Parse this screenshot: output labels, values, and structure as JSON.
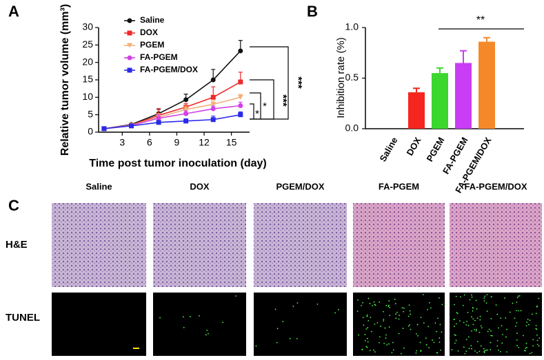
{
  "chart_data": [
    {
      "type": "line",
      "panel": "A",
      "ylabel": "Relative tumor volume (mm³)",
      "xlabel": "Time post tumor inoculation (day)",
      "x": [
        1,
        4,
        7,
        10,
        13,
        16
      ],
      "xlim": [
        0.4,
        17
      ],
      "xticks": [
        3,
        6,
        9,
        12,
        15
      ],
      "ylim": [
        0,
        30
      ],
      "yticks": [
        0,
        5,
        10,
        15,
        20,
        25,
        30
      ],
      "series": [
        {
          "name": "Saline",
          "color": "#111111",
          "marker": "circle",
          "values": [
            1,
            2.2,
            5.3,
            9.3,
            15,
            23.3
          ],
          "errors": [
            0.3,
            0.4,
            1.2,
            1.6,
            3.0,
            3.0
          ]
        },
        {
          "name": "DOX",
          "color": "#ee2b2b",
          "marker": "square",
          "values": [
            1,
            2,
            4.8,
            7.2,
            10,
            14.4
          ],
          "errors": [
            0.3,
            0.4,
            2.0,
            1.0,
            3.0,
            2.8
          ]
        },
        {
          "name": "PGEM",
          "color": "#f3b07a",
          "marker": "triangle",
          "values": [
            1,
            2,
            4.3,
            6.5,
            8,
            10
          ],
          "errors": [
            0.3,
            0.3,
            1.0,
            1.0,
            1.0,
            0.8
          ]
        },
        {
          "name": "FA-PGEM",
          "color": "#d43ee8",
          "marker": "circle",
          "values": [
            1,
            1.9,
            4.0,
            5.3,
            6.7,
            7.6
          ],
          "errors": [
            0.3,
            0.3,
            1.0,
            0.8,
            0.8,
            1.0
          ]
        },
        {
          "name": "FA-PGEM/DOX",
          "color": "#2a2ae8",
          "marker": "square",
          "values": [
            1,
            1.8,
            2.8,
            3.2,
            3.6,
            5.0
          ],
          "errors": [
            0.2,
            0.3,
            0.5,
            0.6,
            1.0,
            0.8
          ]
        }
      ],
      "annotations": [
        "***",
        "***",
        "*",
        "*"
      ]
    },
    {
      "type": "bar",
      "panel": "B",
      "ylabel": "Inhibition rate (%)",
      "categories": [
        "Saline",
        "DOX",
        "PGEM",
        "FA-PGEM",
        "FA-PGEM/DOX"
      ],
      "values": [
        0,
        0.36,
        0.55,
        0.65,
        0.86
      ],
      "errors": [
        0,
        0.04,
        0.05,
        0.12,
        0.04
      ],
      "colors": [
        "#888888",
        "#f5261f",
        "#3bd62e",
        "#c93df5",
        "#f5892a"
      ],
      "ylim": [
        0,
        1
      ],
      "yticks": [
        {
          "value": 0,
          "label": "0.0"
        },
        {
          "value": 0.5,
          "label": "0.5"
        },
        {
          "value": 1,
          "label": "1.0"
        }
      ],
      "annotations": [
        "**"
      ]
    }
  ],
  "panel_c": {
    "panel": "C",
    "columns": [
      "Saline",
      "DOX",
      "PGEM/DOX",
      "FA-PGEM",
      "FA-PGEM/DOX"
    ],
    "rows": [
      "H&E",
      "TUNEL"
    ]
  }
}
